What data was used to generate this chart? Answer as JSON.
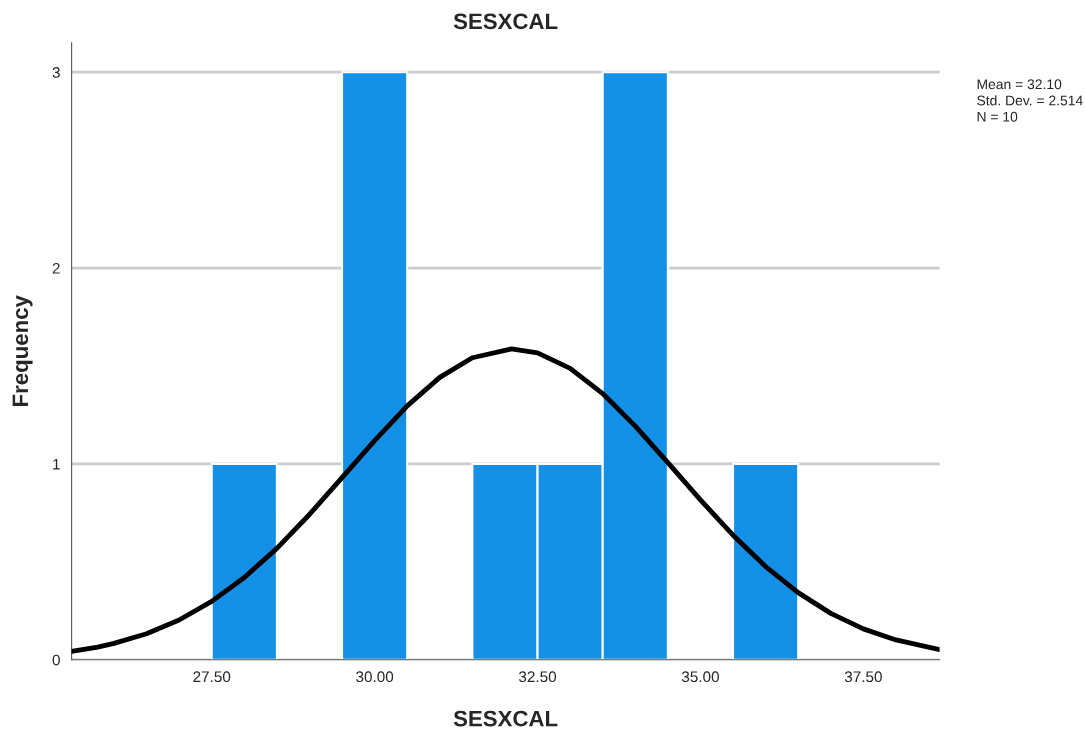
{
  "chart_data": {
    "type": "histogram",
    "title": "SESXCAL",
    "xlabel": "SESXCAL",
    "ylabel": "Frequency",
    "bins": [
      27.5,
      28.5,
      29.5,
      30.5,
      31.5,
      32.5,
      33.5,
      34.5,
      35.5,
      36.5
    ],
    "values": [
      1,
      0,
      3,
      0,
      1,
      1,
      3,
      0,
      1
    ],
    "color": "#1490e6",
    "series": [
      {
        "type": "line",
        "color": "#000000",
        "x": [
          25.35,
          25.75,
          26,
          26.5,
          27,
          27.5,
          28,
          28.5,
          29,
          29.5,
          30,
          30.5,
          31,
          31.5,
          32.1,
          32.5,
          33,
          33.5,
          34,
          34.5,
          35,
          35.5,
          36,
          36.5,
          37,
          37.5,
          38,
          38.67
        ],
        "values": [
          0.043,
          0.065,
          0.084,
          0.133,
          0.203,
          0.298,
          0.42,
          0.569,
          0.742,
          0.93,
          1.119,
          1.296,
          1.442,
          1.542,
          1.587,
          1.567,
          1.488,
          1.359,
          1.193,
          1.006,
          0.816,
          0.636,
          0.476,
          0.343,
          0.237,
          0.158,
          0.101,
          0.052
        ]
      }
    ],
    "xlim": [
      25.35,
      38.67
    ],
    "ylim": [
      0,
      3.15
    ],
    "xticks": [
      {
        "value": 27.5,
        "label": "27.50"
      },
      {
        "value": 30,
        "label": "30.00"
      },
      {
        "value": 32.5,
        "label": "32.50"
      },
      {
        "value": 35,
        "label": "35.00"
      },
      {
        "value": 37.5,
        "label": "37.50"
      }
    ],
    "yticks": [
      0,
      1,
      2,
      3
    ],
    "grid": "y",
    "annotations": [
      "Mean = 32.10",
      "Std. Dev. = 2.514",
      "N = 10"
    ]
  }
}
